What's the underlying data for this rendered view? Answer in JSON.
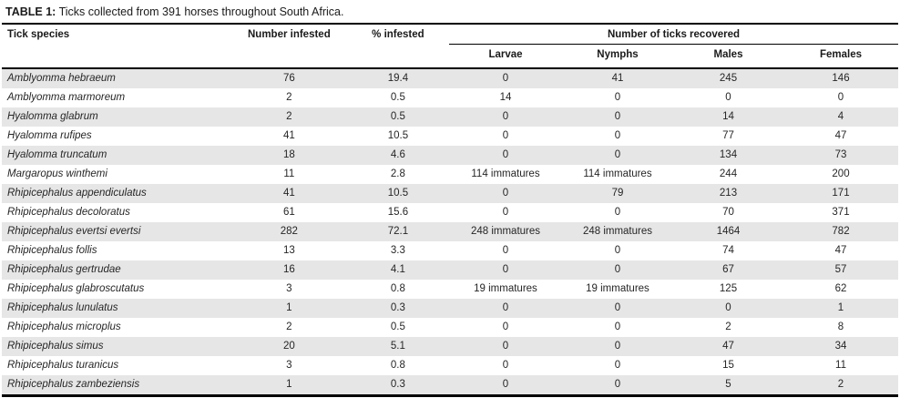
{
  "caption": {
    "label": "TABLE 1:",
    "text": "Ticks collected from 391 horses throughout South Africa."
  },
  "table": {
    "columns": {
      "species": "Tick species",
      "number_infested": "Number infested",
      "pct_infested": "% infested",
      "group": "Number of ticks recovered",
      "subcolumns": {
        "larvae": "Larvae",
        "nymphs": "Nymphs",
        "males": "Males",
        "females": "Females"
      }
    },
    "rows": [
      {
        "species": "Amblyomma hebraeum",
        "number_infested": "76",
        "pct_infested": "19.4",
        "larvae": "0",
        "nymphs": "41",
        "males": "245",
        "females": "146"
      },
      {
        "species": "Amblyomma marmoreum",
        "number_infested": "2",
        "pct_infested": "0.5",
        "larvae": "14",
        "nymphs": "0",
        "males": "0",
        "females": "0"
      },
      {
        "species": "Hyalomma glabrum",
        "number_infested": "2",
        "pct_infested": "0.5",
        "larvae": "0",
        "nymphs": "0",
        "males": "14",
        "females": "4"
      },
      {
        "species": "Hyalomma rufipes",
        "number_infested": "41",
        "pct_infested": "10.5",
        "larvae": "0",
        "nymphs": "0",
        "males": "77",
        "females": "47"
      },
      {
        "species": "Hyalomma truncatum",
        "number_infested": "18",
        "pct_infested": "4.6",
        "larvae": "0",
        "nymphs": "0",
        "males": "134",
        "females": "73"
      },
      {
        "species": "Margaropus winthemi",
        "number_infested": "11",
        "pct_infested": "2.8",
        "larvae": "114 immatures",
        "nymphs": "114 immatures",
        "males": "244",
        "females": "200"
      },
      {
        "species": "Rhipicephalus appendiculatus",
        "number_infested": "41",
        "pct_infested": "10.5",
        "larvae": "0",
        "nymphs": "79",
        "males": "213",
        "females": "171"
      },
      {
        "species": "Rhipicephalus decoloratus",
        "number_infested": "61",
        "pct_infested": "15.6",
        "larvae": "0",
        "nymphs": "0",
        "males": "70",
        "females": "371"
      },
      {
        "species": "Rhipicephalus evertsi evertsi",
        "number_infested": "282",
        "pct_infested": "72.1",
        "larvae": "248 immatures",
        "nymphs": "248 immatures",
        "males": "1464",
        "females": "782"
      },
      {
        "species": "Rhipicephalus follis",
        "number_infested": "13",
        "pct_infested": "3.3",
        "larvae": "0",
        "nymphs": "0",
        "males": "74",
        "females": "47"
      },
      {
        "species": "Rhipicephalus gertrudae",
        "number_infested": "16",
        "pct_infested": "4.1",
        "larvae": "0",
        "nymphs": "0",
        "males": "67",
        "females": "57"
      },
      {
        "species": "Rhipicephalus glabroscutatus",
        "number_infested": "3",
        "pct_infested": "0.8",
        "larvae": "19 immatures",
        "nymphs": "19 immatures",
        "males": "125",
        "females": "62"
      },
      {
        "species": "Rhipicephalus lunulatus",
        "number_infested": "1",
        "pct_infested": "0.3",
        "larvae": "0",
        "nymphs": "0",
        "males": "0",
        "females": "1"
      },
      {
        "species": "Rhipicephalus microplus",
        "number_infested": "2",
        "pct_infested": "0.5",
        "larvae": "0",
        "nymphs": "0",
        "males": "2",
        "females": "8"
      },
      {
        "species": "Rhipicephalus simus",
        "number_infested": "20",
        "pct_infested": "5.1",
        "larvae": "0",
        "nymphs": "0",
        "males": "47",
        "females": "34"
      },
      {
        "species": "Rhipicephalus turanicus",
        "number_infested": "3",
        "pct_infested": "0.8",
        "larvae": "0",
        "nymphs": "0",
        "males": "15",
        "females": "11"
      },
      {
        "species": "Rhipicephalus zambeziensis",
        "number_infested": "1",
        "pct_infested": "0.3",
        "larvae": "0",
        "nymphs": "0",
        "males": "5",
        "females": "2"
      }
    ]
  },
  "colors": {
    "stripe": "#e6e6e6",
    "border": "#000000",
    "text": "#262626"
  }
}
